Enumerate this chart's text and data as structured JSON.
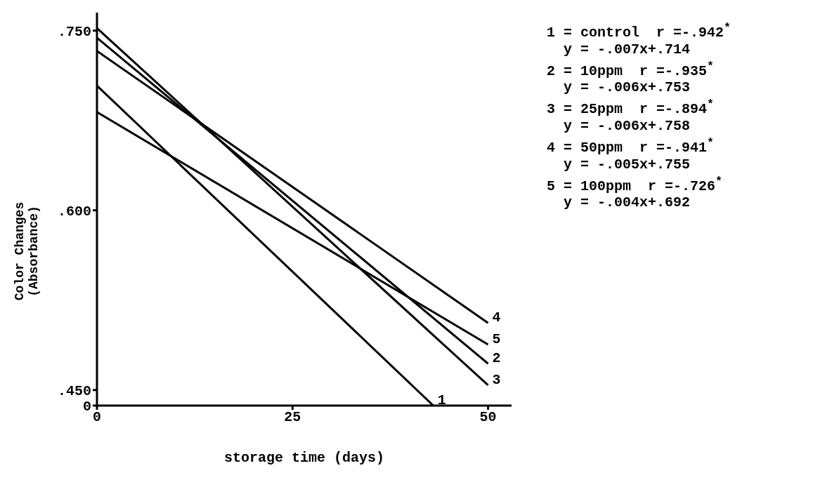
{
  "chart_data": {
    "type": "line",
    "xlabel": "storage time (days)",
    "ylabel": "Color Changes\n(Absorbance)",
    "xlim": [
      0,
      53
    ],
    "xticks": [
      0,
      25,
      50
    ],
    "ylim": [
      0.437,
      0.765
    ],
    "yticks": [
      {
        "value": 0.437,
        "label": "0"
      },
      {
        "value": 0.45,
        "label": ".450"
      },
      {
        "value": 0.6,
        "label": ".600"
      },
      {
        "value": 0.75,
        "label": ".750"
      }
    ],
    "grid": false,
    "legend": false,
    "marker": "none",
    "line_style": "solid",
    "series": [
      {
        "name": "1",
        "color": "#000000",
        "x": [
          0,
          43
        ],
        "values": [
          0.704,
          0.437
        ]
      },
      {
        "name": "2",
        "color": "#000000",
        "x": [
          0,
          50
        ],
        "values": [
          0.744,
          0.472
        ]
      },
      {
        "name": "3",
        "color": "#000000",
        "x": [
          0,
          50
        ],
        "values": [
          0.752,
          0.454
        ]
      },
      {
        "name": "4",
        "color": "#000000",
        "x": [
          0,
          50
        ],
        "values": [
          0.733,
          0.506
        ]
      },
      {
        "name": "5",
        "color": "#000000",
        "x": [
          0,
          50
        ],
        "values": [
          0.682,
          0.488
        ]
      }
    ],
    "annotations": [
      "1 = control  r =-.942$^{*}$",
      "y = -.007x+.714",
      "2 = 10ppm  r =-.935$^{*}$",
      "y = -.006x+.753",
      "3 = 25ppm  r =-.894$^{*}$",
      "y = -.006x+.758",
      "4 = 50ppm  r =-.941$^{*}$",
      "y = -.005x+.755",
      "5 = 100ppm  r =-.726$^{*}$",
      "y = -.004x+.692"
    ]
  }
}
